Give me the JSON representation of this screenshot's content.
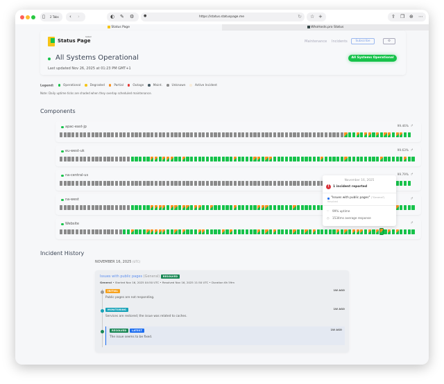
{
  "browser": {
    "tabs_count": "2 Tabs",
    "url": "https://status.statuspage.me",
    "tab1": "Status Page",
    "tab2": "WhoHosts.pro Status"
  },
  "header": {
    "logo_text": "Status Page",
    "logo_sub": "hosted",
    "nav": [
      "Maintenance",
      "Incidents"
    ],
    "subscribe": "Subscribe",
    "settings_icon": "gear-icon"
  },
  "status": {
    "title": "All Systems Operational",
    "updated": "Last updated Nov 26, 2025 at 01:23 PM GMT+1",
    "badge": "All Systems Operational"
  },
  "legend": {
    "label": "Legend:",
    "items": [
      {
        "label": "Operational",
        "color": "#16c24a"
      },
      {
        "label": "Degraded",
        "color": "#f5c518"
      },
      {
        "label": "Partial",
        "color": "#f7901e"
      },
      {
        "label": "Outage",
        "color": "#e53935"
      },
      {
        "label": "Maint.",
        "color": "#455a64"
      },
      {
        "label": "Unknown",
        "color": "#8a8a8a"
      },
      {
        "label": "Active Incident",
        "color": "#f8ecd9"
      }
    ],
    "note": "Note: Daily uptime ticks are shaded when they overlap scheduled maintenance."
  },
  "components": {
    "title": "Components",
    "items": [
      {
        "name": "apac-east-jp",
        "uptime": "99.46%",
        "ticks": "uuuuuuuuuuuuuuuuuuuuuuuuuuuuuuuuuuuuuuuuuuuuuuuuuuuuuuuuuuuuuuuuuuuuuuuupoopoppopoppoppoo"
      },
      {
        "name": "eu-west-uk",
        "uptime": "99.63%",
        "ticks": "uuuuuuuuuuuuuuuuuuoooooppopppoopoooooooooooopooooppoppoooooooooooopooooopoooooooopooooopooopop"
      },
      {
        "name": "na-central-us",
        "uptime": "99.79%",
        "ticks": "uuuuuuuuuuuuuuuuuuuuuuuuuuuuuuuuuuuuuuuuuuuuuuuuuuuuuuuuuuuuuuuuuuuuuuuuuoooooooooooooooo"
      },
      {
        "name": "na-west",
        "uptime": "",
        "ticks": "uuuuuuuuuuuuuuuuuuoooooppppoppoppoppoopooooopooooopppoooooopoooooooopoooopooooopooooopoooo"
      },
      {
        "name": "Website",
        "uptime": "",
        "ticks": "uuuuuuuuuuuuuuuuoopooopppppoopopoooppoooopopoooooopopopoooopoopopooooopopopppopoppopopoooop"
      }
    ]
  },
  "tooltip": {
    "date": "November 16, 2025",
    "count": "1 incident reported",
    "incident": "\"Issues with public pages\"",
    "category": "(\"General\")",
    "state": "Resolved",
    "uptime": "99% uptime",
    "response": "1534ms average response"
  },
  "history": {
    "title": "Incident History",
    "date": "NOVEMBER 16, 2025",
    "tz": "(UTC)",
    "incident": {
      "title": "Issues with public pages",
      "category": "(General)",
      "badge": "RESOLVED",
      "meta_bold": "General",
      "meta": " • Started Nov 16, 2025 04:50 UTC • Resolved Nov 16, 2025 11:50 UTC • Duration 6h 59m",
      "updates": [
        {
          "badge": "INITIAL",
          "color": "#f7a21e",
          "dot": "#9a9a9a",
          "time": "1W AGO",
          "text": "Public pages are not responding."
        },
        {
          "badge": "MONITORING",
          "color": "#17a2b8",
          "dot": "#17a2b8",
          "time": "1W AGO",
          "text": "Services are restored; the issue was related to caches."
        },
        {
          "badge": "RESOLVED",
          "color": "#198754",
          "dot": "#198754",
          "latest": "LATEST",
          "time": "1W AGO",
          "text": "The issue seems to be fixed."
        }
      ]
    }
  }
}
